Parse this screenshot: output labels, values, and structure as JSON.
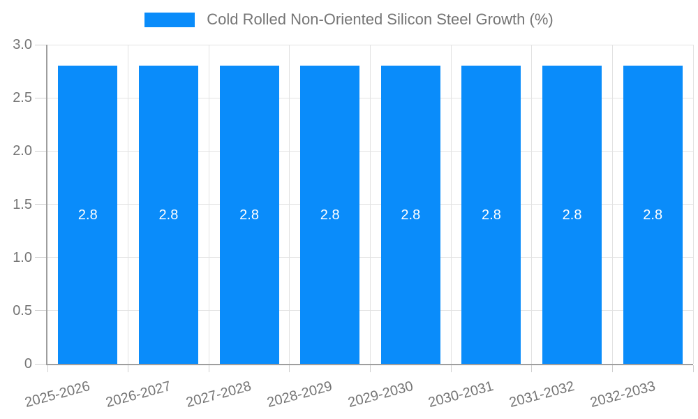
{
  "legend": {
    "label": "Cold Rolled Non-Oriented Silicon Steel Growth (%)"
  },
  "chart_data": {
    "type": "bar",
    "title": "Cold Rolled Non-Oriented Silicon Steel Growth (%)",
    "series_name": "Cold Rolled Non-Oriented Silicon Steel Growth (%)",
    "categories": [
      "2025-2026",
      "2026-2027",
      "2027-2028",
      "2028-2029",
      "2029-2030",
      "2030-2031",
      "2031-2032",
      "2032-2033"
    ],
    "values": [
      2.8,
      2.8,
      2.8,
      2.8,
      2.8,
      2.8,
      2.8,
      2.8
    ],
    "bar_labels": [
      "2.8",
      "2.8",
      "2.8",
      "2.8",
      "2.8",
      "2.8",
      "2.8",
      "2.8"
    ],
    "xlabel": "",
    "ylabel": "",
    "ylim": [
      0,
      3.0
    ],
    "y_ticks": [
      0,
      0.5,
      1.0,
      1.5,
      2.0,
      2.5,
      3.0
    ],
    "y_tick_labels": [
      "0",
      "0.5",
      "1.0",
      "1.5",
      "2.0",
      "2.5",
      "3.0"
    ],
    "grid": true,
    "legend_position": "top-center",
    "colors": {
      "bar": "#0A8CFA",
      "bar_label": "#FFFFFF",
      "axis_line": "#9E9E9E",
      "gridline": "#E2E2E2",
      "tick_mark": "#CFCFCF",
      "text": "#757575",
      "background": "#FFFFFF"
    }
  }
}
